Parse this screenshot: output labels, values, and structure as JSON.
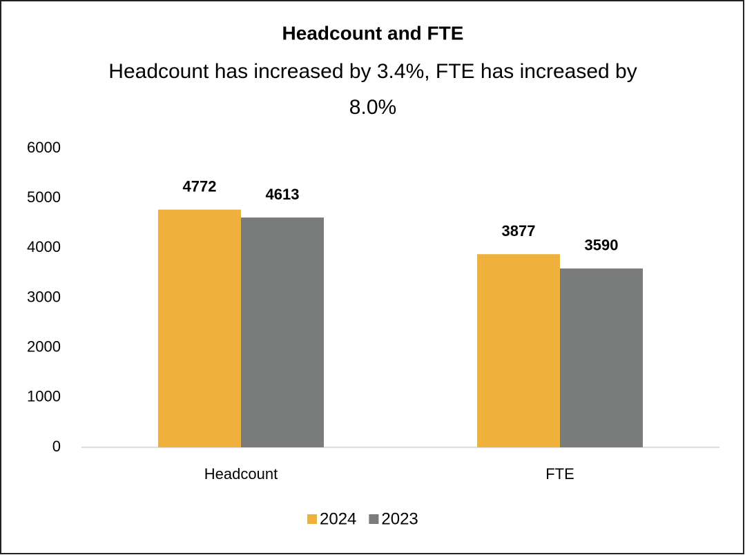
{
  "chart_data": {
    "type": "bar",
    "title": "Headcount and FTE",
    "subtitle": "Headcount has increased by 3.4%, FTE has increased by 8.0%",
    "categories": [
      "Headcount",
      "FTE"
    ],
    "series": [
      {
        "name": "2024",
        "color": "#f0b13c",
        "values": [
          4772,
          3877
        ]
      },
      {
        "name": "2023",
        "color": "#7a7c7c",
        "values": [
          4613,
          3590
        ]
      }
    ],
    "ylim": [
      0,
      6000
    ],
    "yticks": [
      0,
      1000,
      2000,
      3000,
      4000,
      5000,
      6000
    ],
    "grid": false,
    "legend": "bottom"
  }
}
